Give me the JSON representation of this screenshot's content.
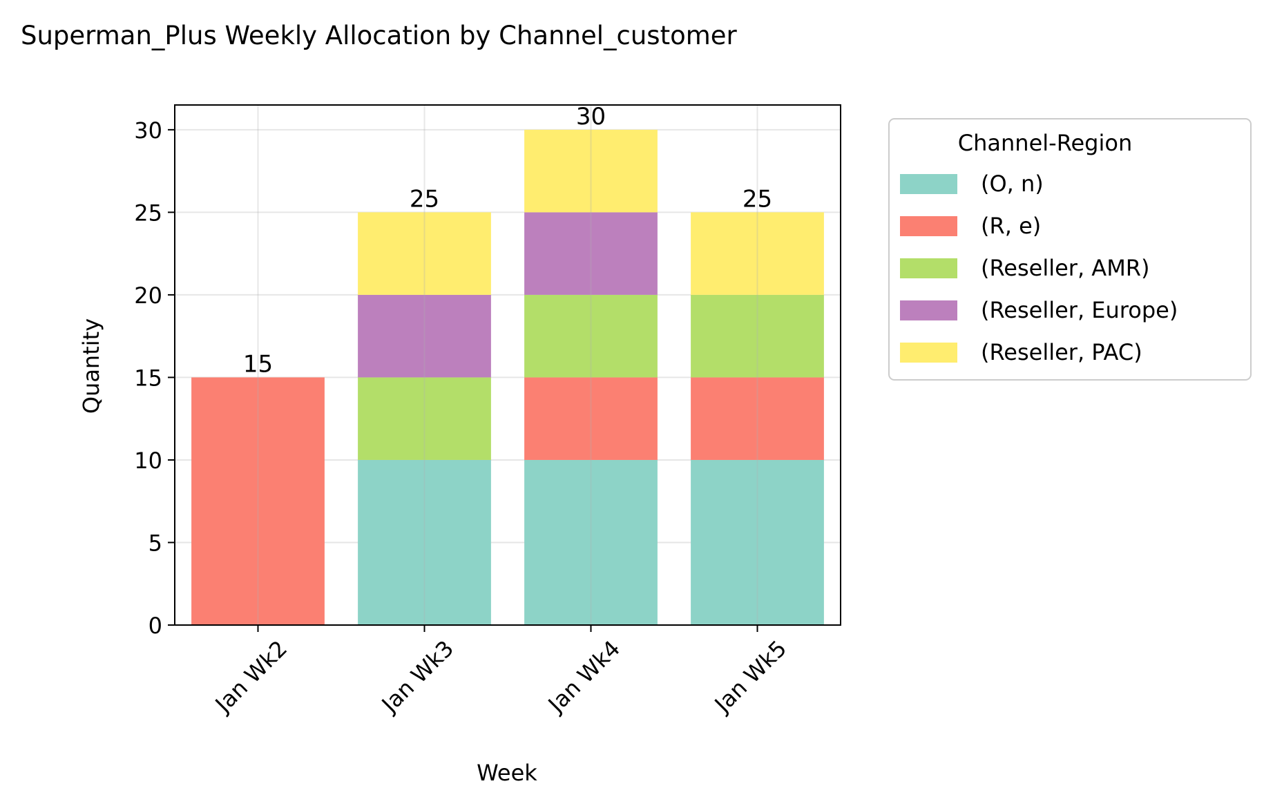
{
  "chart_data": {
    "type": "bar",
    "stacked": true,
    "title": "Superman_Plus Weekly Allocation by Channel_customer",
    "xlabel": "Week",
    "ylabel": "Quantity",
    "ylim": [
      0,
      31.5
    ],
    "yticks": [
      0,
      5,
      10,
      15,
      20,
      25,
      30
    ],
    "grid": true,
    "legend": {
      "title": "Channel-Region",
      "placement": "outside-right"
    },
    "categories": [
      "Jan Wk2",
      "Jan Wk3",
      "Jan Wk4",
      "Jan Wk5"
    ],
    "series": [
      {
        "name": "(O, n)",
        "color": "#8dd3c7",
        "values": [
          0,
          10,
          10,
          10
        ]
      },
      {
        "name": "(R, e)",
        "color": "#fb8072",
        "values": [
          15,
          0,
          5,
          5
        ]
      },
      {
        "name": "(Reseller, AMR)",
        "color": "#b3de69",
        "values": [
          0,
          5,
          5,
          5
        ]
      },
      {
        "name": "(Reseller, Europe)",
        "color": "#bc80bd",
        "values": [
          0,
          5,
          5,
          0
        ]
      },
      {
        "name": "(Reseller, PAC)",
        "color": "#ffed6f",
        "values": [
          0,
          5,
          5,
          5
        ]
      }
    ],
    "totals": [
      "15",
      "25",
      "30",
      "25"
    ]
  }
}
